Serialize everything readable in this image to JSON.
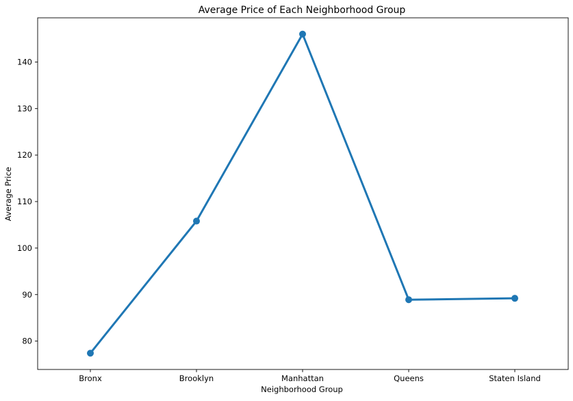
{
  "chart_data": {
    "type": "line",
    "title": "Average Price of Each Neighborhood Group",
    "xlabel": "Neighborhood Group",
    "ylabel": "Average Price",
    "categories": [
      "Bronx",
      "Brooklyn",
      "Manhattan",
      "Queens",
      "Staten Island"
    ],
    "series": [
      {
        "values": [
          77.4,
          105.8,
          146.0,
          88.9,
          89.2
        ],
        "color": "#1f77b4"
      }
    ],
    "yticks": [
      80,
      90,
      100,
      110,
      120,
      130,
      140
    ],
    "ytick_labels": [
      "80",
      "90",
      "100",
      "110",
      "120",
      "130",
      "140"
    ],
    "ylim": [
      73.9,
      149.5
    ],
    "grid": false,
    "legend": "none"
  }
}
